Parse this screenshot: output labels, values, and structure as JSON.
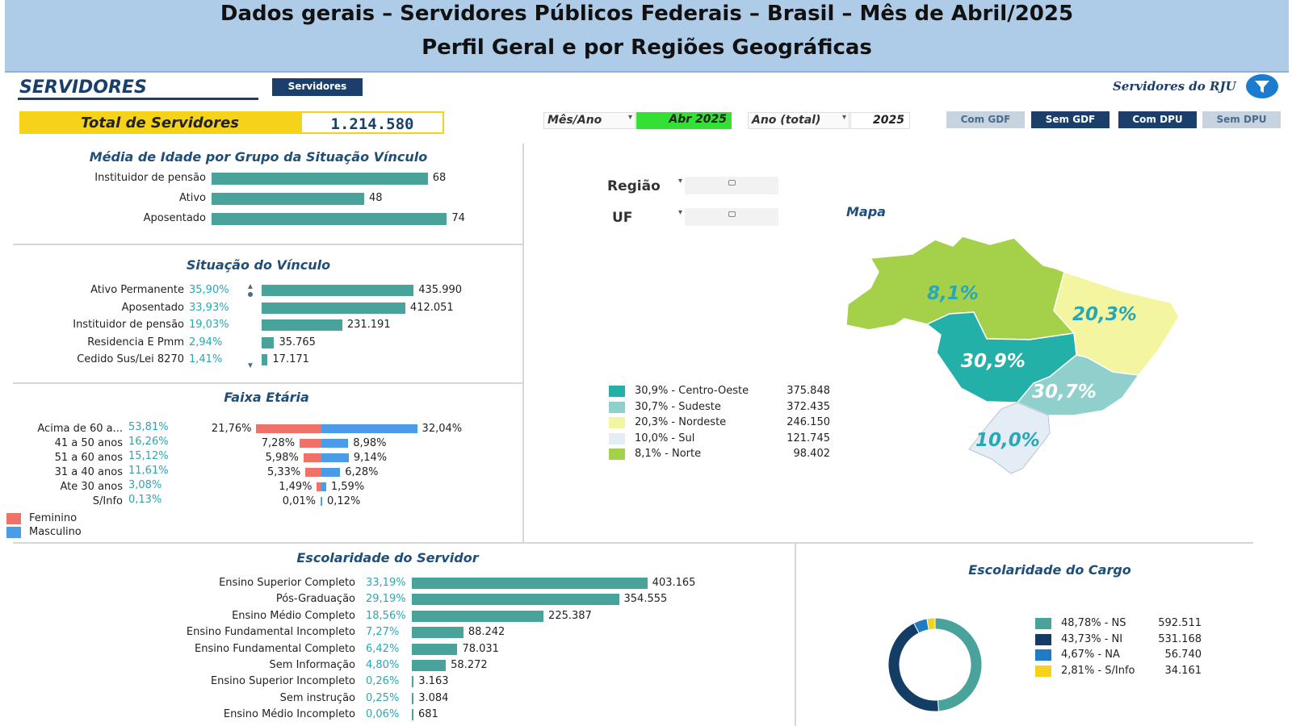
{
  "banner": {
    "line1": "Dados gerais – Servidores Públicos Federais – Brasil – Mês de Abril/2025",
    "line2": "Perfil Geral e por Regiões Geográficas"
  },
  "header": {
    "section": "SERVIDORES",
    "tab_button": "Servidores",
    "rju_label": "Servidores do RJU",
    "total_label": "Total de Servidores",
    "total_value": "1.214.580",
    "mes_ano_label": "Mês/Ano",
    "mes_ano_value": "Abr 2025",
    "ano_total_label": "Ano (total)",
    "ano_total_value": "2025",
    "buttons": [
      "Com GDF",
      "Sem GDF",
      "Com DPU",
      "Sem DPU"
    ]
  },
  "colors": {
    "bar": "#4aa39a",
    "feminino": "#f07167",
    "masculino": "#4a9ce8",
    "highlight": "#33e033",
    "total_yellow": "#f7d21b",
    "nav": "#1a3f6b"
  },
  "idade": {
    "title": "Média de Idade por Grupo da Situação Vínculo",
    "max": 80,
    "rows": [
      {
        "label": "Instituidor de pensão",
        "value": 68
      },
      {
        "label": "Ativo",
        "value": 48
      },
      {
        "label": "Aposentado",
        "value": 74
      }
    ]
  },
  "vinculo": {
    "title": "Situação do Vínculo",
    "max": 440000,
    "rows": [
      {
        "label": "Ativo Permanente",
        "pct": "35,90%",
        "value": 435990,
        "display": "435.990"
      },
      {
        "label": "Aposentado",
        "pct": "33,93%",
        "value": 412051,
        "display": "412.051"
      },
      {
        "label": "Instituidor de pensão",
        "pct": "19,03%",
        "value": 231191,
        "display": "231.191"
      },
      {
        "label": "Residencia E Pmm",
        "pct": "2,94%",
        "value": 35765,
        "display": "35.765"
      },
      {
        "label": "Cedido Sus/Lei 8270",
        "pct": "1,41%",
        "value": 17171,
        "display": "17.171"
      }
    ]
  },
  "faixa": {
    "title": "Faixa Etária",
    "rows": [
      {
        "label": "Acima de 60 a...",
        "pct": "53,81%",
        "fem": 21.76,
        "fem_d": "21,76%",
        "masc": 32.04,
        "masc_d": "32,04%"
      },
      {
        "label": "41 a 50 anos",
        "pct": "16,26%",
        "fem": 7.28,
        "fem_d": "7,28%",
        "masc": 8.98,
        "masc_d": "8,98%"
      },
      {
        "label": "51 a 60 anos",
        "pct": "15,12%",
        "fem": 5.98,
        "fem_d": "5,98%",
        "masc": 9.14,
        "masc_d": "9,14%"
      },
      {
        "label": "31 a 40 anos",
        "pct": "11,61%",
        "fem": 5.33,
        "fem_d": "5,33%",
        "masc": 6.28,
        "masc_d": "6,28%"
      },
      {
        "label": "Ate 30 anos",
        "pct": "3,08%",
        "fem": 1.49,
        "fem_d": "1,49%",
        "masc": 1.59,
        "masc_d": "1,59%"
      },
      {
        "label": "S/Info",
        "pct": "0,13%",
        "fem": 0.01,
        "fem_d": "0,01%",
        "masc": 0.12,
        "masc_d": "0,12%"
      }
    ],
    "legend": [
      "Feminino",
      "Masculino"
    ]
  },
  "mapa": {
    "title": "Mapa",
    "regiao_label": "Região",
    "uf_label": "UF",
    "labels": {
      "norte": "8,1%",
      "nordeste": "20,3%",
      "centro_oeste": "30,9%",
      "sudeste": "30,7%",
      "sul": "10,0%"
    },
    "legend": [
      {
        "label": "30,9% - Centro-Oeste",
        "value": "375.848",
        "color": "#22b0a8"
      },
      {
        "label": "30,7% - Sudeste",
        "value": "372.435",
        "color": "#8fcfcc"
      },
      {
        "label": "20,3% - Nordeste",
        "value": "246.150",
        "color": "#f4f5a0"
      },
      {
        "label": "10,0% - Sul",
        "value": "121.745",
        "color": "#e4ecf6"
      },
      {
        "label": "8,1% - Norte",
        "value": "98.402",
        "color": "#a4d04a"
      }
    ]
  },
  "escolaridade": {
    "title": "Escolaridade do Servidor",
    "max": 405000,
    "rows": [
      {
        "label": "Ensino Superior Completo",
        "pct": "33,19%",
        "value": 403165,
        "display": "403.165"
      },
      {
        "label": "Pós-Graduação",
        "pct": "29,19%",
        "value": 354555,
        "display": "354.555"
      },
      {
        "label": "Ensino Médio Completo",
        "pct": "18,56%",
        "value": 225387,
        "display": "225.387"
      },
      {
        "label": "Ensino Fundamental Incompleto",
        "pct": "7,27%",
        "value": 88242,
        "display": "88.242"
      },
      {
        "label": "Ensino Fundamental Completo",
        "pct": "6,42%",
        "value": 78031,
        "display": "78.031"
      },
      {
        "label": "Sem Informação",
        "pct": "4,80%",
        "value": 58272,
        "display": "58.272"
      },
      {
        "label": "Ensino Superior Incompleto",
        "pct": "0,26%",
        "value": 3163,
        "display": "3.163"
      },
      {
        "label": "Sem instrução",
        "pct": "0,25%",
        "value": 3084,
        "display": "3.084"
      },
      {
        "label": "Ensino Médio Incompleto",
        "pct": "0,06%",
        "value": 681,
        "display": "681"
      }
    ]
  },
  "cargo": {
    "title": "Escolaridade do Cargo",
    "items": [
      {
        "label": "48,78% - NS",
        "value": "592.511",
        "share": 48.78,
        "color": "#4aa39a"
      },
      {
        "label": "43,73% - NI",
        "value": "531.168",
        "share": 43.73,
        "color": "#143d66"
      },
      {
        "label": "4,67% - NA",
        "value": "56.740",
        "share": 4.67,
        "color": "#1f7bc6"
      },
      {
        "label": "2,81% - S/Info",
        "value": "34.161",
        "share": 2.81,
        "color": "#f7d21b"
      }
    ]
  }
}
